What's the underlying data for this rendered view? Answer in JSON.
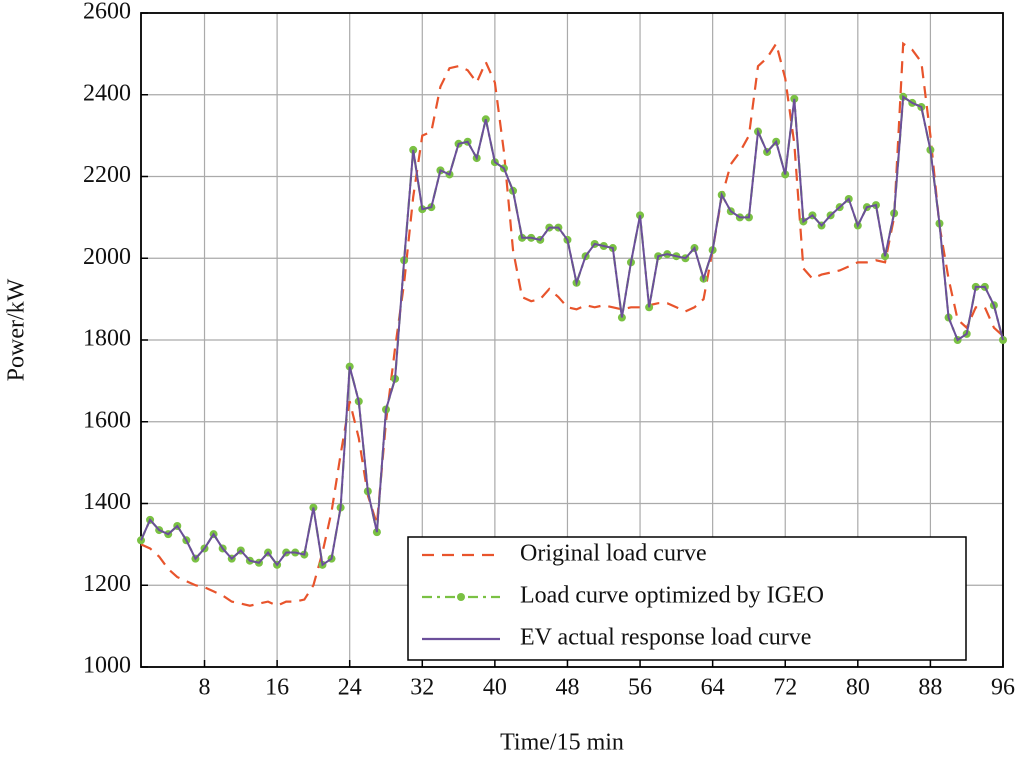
{
  "chart_data": {
    "type": "line",
    "x_label": "Time/15 min",
    "y_label": "Power/kW",
    "x": [
      1,
      2,
      3,
      4,
      5,
      6,
      7,
      8,
      9,
      10,
      11,
      12,
      13,
      14,
      15,
      16,
      17,
      18,
      19,
      20,
      21,
      22,
      23,
      24,
      25,
      26,
      27,
      28,
      29,
      30,
      31,
      32,
      33,
      34,
      35,
      36,
      37,
      38,
      39,
      40,
      41,
      42,
      43,
      44,
      45,
      46,
      47,
      48,
      49,
      50,
      51,
      52,
      53,
      54,
      55,
      56,
      57,
      58,
      59,
      60,
      61,
      62,
      63,
      64,
      65,
      66,
      67,
      68,
      69,
      70,
      71,
      72,
      73,
      74,
      75,
      76,
      77,
      78,
      79,
      80,
      81,
      82,
      83,
      84,
      85,
      86,
      87,
      88,
      89,
      90,
      91,
      92,
      93,
      94,
      95,
      96
    ],
    "series": [
      {
        "name": "Original load curve",
        "color": "#e8542c",
        "style": "dashed",
        "markers": false,
        "values": [
          1300,
          1290,
          1270,
          1240,
          1220,
          1210,
          1200,
          1195,
          1185,
          1175,
          1160,
          1155,
          1150,
          1155,
          1160,
          1150,
          1160,
          1160,
          1165,
          1200,
          1280,
          1380,
          1520,
          1650,
          1560,
          1420,
          1350,
          1600,
          1780,
          1940,
          2150,
          2300,
          2310,
          2420,
          2465,
          2470,
          2460,
          2430,
          2480,
          2430,
          2260,
          2020,
          1905,
          1895,
          1900,
          1925,
          1905,
          1880,
          1875,
          1885,
          1880,
          1885,
          1880,
          1875,
          1880,
          1880,
          1885,
          1890,
          1890,
          1880,
          1870,
          1880,
          1900,
          2020,
          2150,
          2230,
          2260,
          2300,
          2470,
          2490,
          2525,
          2440,
          2280,
          1975,
          1950,
          1960,
          1965,
          1970,
          1980,
          1990,
          1990,
          1995,
          1990,
          2100,
          2525,
          2510,
          2480,
          2300,
          2080,
          1950,
          1850,
          1830,
          1880,
          1880,
          1830,
          1810
        ]
      },
      {
        "name": "Load curve optimized by IGEO",
        "color": "#7ac143",
        "style": "dashdot",
        "markers": true,
        "values": [
          1310,
          1360,
          1335,
          1325,
          1345,
          1310,
          1265,
          1290,
          1325,
          1290,
          1265,
          1285,
          1260,
          1255,
          1280,
          1250,
          1280,
          1280,
          1275,
          1390,
          1250,
          1265,
          1390,
          1735,
          1650,
          1430,
          1330,
          1630,
          1705,
          1995,
          2265,
          2120,
          2125,
          2215,
          2205,
          2280,
          2285,
          2245,
          2340,
          2235,
          2220,
          2165,
          2050,
          2050,
          2045,
          2075,
          2075,
          2045,
          1940,
          2005,
          2035,
          2030,
          2025,
          1855,
          1990,
          2105,
          1880,
          2005,
          2010,
          2005,
          2000,
          2025,
          1950,
          2020,
          2155,
          2115,
          2100,
          2100,
          2310,
          2260,
          2285,
          2205,
          2390,
          2090,
          2105,
          2080,
          2105,
          2125,
          2145,
          2080,
          2125,
          2130,
          2005,
          2110,
          2395,
          2380,
          2370,
          2265,
          2085,
          1855,
          1800,
          1815,
          1930,
          1930,
          1885,
          1800
        ]
      },
      {
        "name": "EV actual response load curve",
        "color": "#6b4f9a",
        "style": "solid",
        "markers": false,
        "values": [
          1310,
          1360,
          1335,
          1325,
          1345,
          1310,
          1265,
          1290,
          1325,
          1290,
          1265,
          1285,
          1260,
          1255,
          1280,
          1250,
          1280,
          1280,
          1275,
          1390,
          1250,
          1265,
          1390,
          1735,
          1650,
          1430,
          1330,
          1630,
          1705,
          1995,
          2265,
          2120,
          2125,
          2215,
          2205,
          2280,
          2285,
          2245,
          2340,
          2235,
          2220,
          2165,
          2050,
          2050,
          2045,
          2075,
          2075,
          2045,
          1940,
          2005,
          2035,
          2030,
          2025,
          1855,
          1990,
          2105,
          1880,
          2005,
          2010,
          2005,
          2000,
          2025,
          1950,
          2020,
          2155,
          2115,
          2100,
          2100,
          2310,
          2260,
          2285,
          2205,
          2390,
          2090,
          2105,
          2080,
          2105,
          2125,
          2145,
          2080,
          2125,
          2130,
          2005,
          2110,
          2395,
          2380,
          2370,
          2265,
          2085,
          1855,
          1800,
          1815,
          1930,
          1930,
          1885,
          1800
        ]
      }
    ],
    "xlim": [
      1,
      96
    ],
    "ylim": [
      1000,
      2600
    ],
    "xticks": [
      8,
      16,
      24,
      32,
      40,
      48,
      56,
      64,
      72,
      80,
      88,
      96
    ],
    "yticks": [
      1000,
      1200,
      1400,
      1600,
      1800,
      2000,
      2200,
      2400,
      2600
    ],
    "grid": true,
    "legend_position": "lower right"
  }
}
